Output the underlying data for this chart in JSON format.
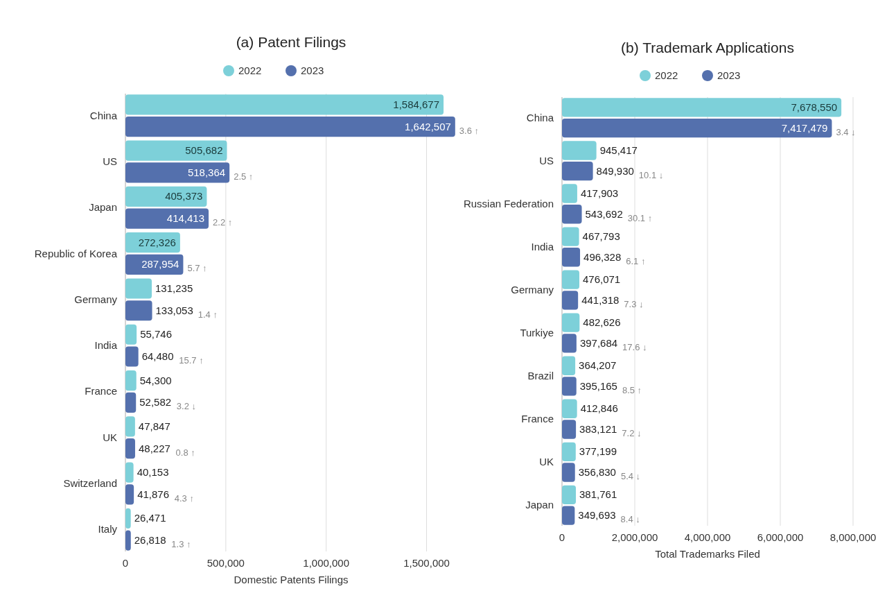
{
  "chart_data": [
    {
      "type": "bar",
      "orientation": "horizontal",
      "title": "(a) Patent Filings",
      "xlabel": "Domestic Patents Filings",
      "categories": [
        "China",
        "US",
        "Japan",
        "Republic of Korea",
        "Germany",
        "India",
        "France",
        "UK",
        "Switzerland",
        "Italy"
      ],
      "series": [
        {
          "name": "2022",
          "color": "#7dd0d9",
          "values": [
            1584677,
            505682,
            405373,
            272326,
            131235,
            55746,
            54300,
            47847,
            40153,
            26471
          ],
          "value_labels": [
            "1,584,677",
            "505,682",
            "405,373",
            "272,326",
            "131,235",
            "55,746",
            "54,300",
            "47,847",
            "40,153",
            "26,471"
          ]
        },
        {
          "name": "2023",
          "color": "#5470ad",
          "values": [
            1642507,
            518364,
            414413,
            287954,
            133053,
            64480,
            52582,
            48227,
            41876,
            26818
          ],
          "value_labels": [
            "1,642,507",
            "518,364",
            "414,413",
            "287,954",
            "133,053",
            "64,480",
            "52,582",
            "48,227",
            "41,876",
            "26,818"
          ]
        }
      ],
      "xlim": [
        0,
        1650000
      ],
      "xticks": [
        {
          "value": 0,
          "label": "0"
        },
        {
          "value": 500000,
          "label": "500,000"
        },
        {
          "value": 1000000,
          "label": "1,000,000"
        },
        {
          "value": 1500000,
          "label": "1,500,000"
        }
      ],
      "grid": "x",
      "legend": "top",
      "annotations": [
        "3.6 ↑",
        "2.5 ↑",
        "2.2 ↑",
        "5.7 ↑",
        "1.4 ↑",
        "15.7 ↑",
        "3.2 ↓",
        "0.8 ↑",
        "4.3 ↑",
        "1.3 ↑"
      ]
    },
    {
      "type": "bar",
      "orientation": "horizontal",
      "title": "(b) Trademark Applications",
      "xlabel": "Total Trademarks Filed",
      "categories": [
        "China",
        "US",
        "Russian Federation",
        "India",
        "Germany",
        "Turkiye",
        "Brazil",
        "France",
        "UK",
        "Japan"
      ],
      "series": [
        {
          "name": "2022",
          "color": "#7dd0d9",
          "values": [
            7678550,
            945417,
            417903,
            467793,
            476071,
            482626,
            364207,
            412846,
            377199,
            381761
          ],
          "value_labels": [
            "7,678,550",
            "945,417",
            "417,903",
            "467,793",
            "476,071",
            "482,626",
            "364,207",
            "412,846",
            "377,199",
            "381,761"
          ]
        },
        {
          "name": "2023",
          "color": "#5470ad",
          "values": [
            7417479,
            849930,
            543692,
            496328,
            441318,
            397684,
            395165,
            383121,
            356830,
            349693
          ],
          "value_labels": [
            "7,417,479",
            "849,930",
            "543,692",
            "496,328",
            "441,318",
            "397,684",
            "395,165",
            "383,121",
            "356,830",
            "349,693"
          ]
        }
      ],
      "xlim": [
        0,
        8000000
      ],
      "xticks": [
        {
          "value": 0,
          "label": "0"
        },
        {
          "value": 2000000,
          "label": "2,000,000"
        },
        {
          "value": 4000000,
          "label": "4,000,000"
        },
        {
          "value": 6000000,
          "label": "6,000,000"
        },
        {
          "value": 8000000,
          "label": "8,000,000"
        }
      ],
      "grid": "x",
      "legend": "top",
      "annotations": [
        "3.4 ↓",
        "10.1 ↓",
        "30.1 ↑",
        "6.1 ↑",
        "7.3 ↓",
        "17.6 ↓",
        "8.5 ↑",
        "7.2 ↓",
        "5.4 ↓",
        "8.4 ↓"
      ]
    }
  ]
}
